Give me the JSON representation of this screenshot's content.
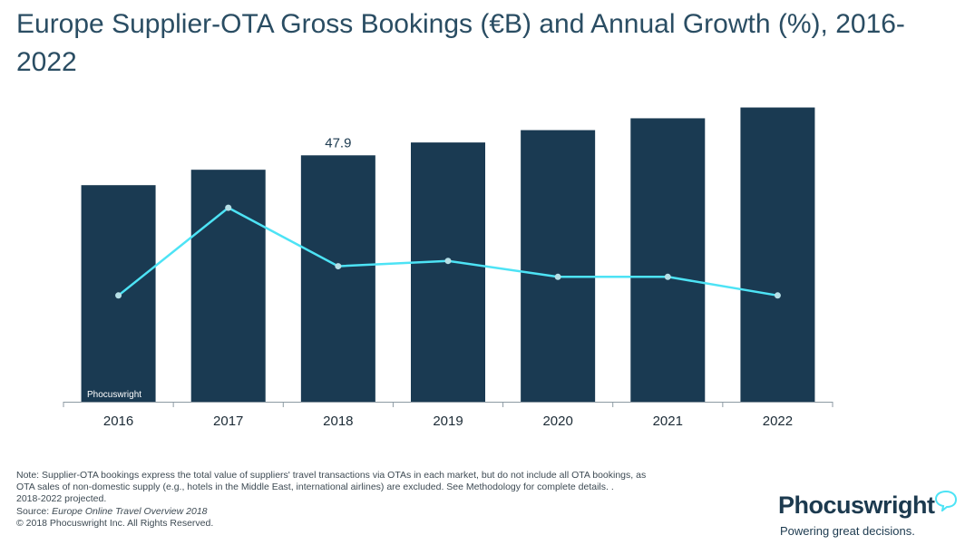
{
  "title": "Europe Supplier-OTA Gross Bookings (€B) and Annual Growth (%), 2016-2022",
  "watermark": "Phocuswright",
  "colors": {
    "bar": "#1a3a52",
    "line": "#4de3f5",
    "point": "#b6dfe6",
    "axis": "#8c9aa3"
  },
  "chart_data": {
    "type": "bar",
    "title": "Europe Supplier-OTA Gross Bookings (€B) and Annual Growth (%), 2016-2022",
    "categories": [
      "2016",
      "2017",
      "2018",
      "2019",
      "2020",
      "2021",
      "2022"
    ],
    "series": [
      {
        "type": "bar",
        "values": [
          42.1,
          45.1,
          47.9,
          50.4,
          52.8,
          55.1,
          57.2
        ]
      },
      {
        "type": "line",
        "values": [
          4.0,
          7.3,
          5.1,
          5.3,
          4.7,
          4.7,
          4.0
        ]
      }
    ],
    "data_labels": [
      {
        "category": "2018",
        "text": "47.9"
      }
    ],
    "xlabel": "",
    "ylabel": "",
    "bar_ylim": [
      0,
      58
    ],
    "line_ylim": [
      0,
      10
    ],
    "grid": false,
    "legend": "none"
  },
  "notes": {
    "line1": "Note: Supplier-OTA bookings express the total value of suppliers' travel transactions via OTAs in each market, but do not include all OTA bookings, as",
    "line2": "OTA sales of non-domestic supply (e.g., hotels in the Middle East, international airlines) are excluded. See Methodology for complete details. .",
    "line3": "2018-2022 projected.",
    "source_prefix": "Source: ",
    "source_title": "Europe Online Travel Overview 2018",
    "copyright": "© 2018 Phocuswright Inc. All Rights Reserved."
  },
  "brand": {
    "name": "Phocuswright",
    "tagline": "Powering great decisions."
  }
}
